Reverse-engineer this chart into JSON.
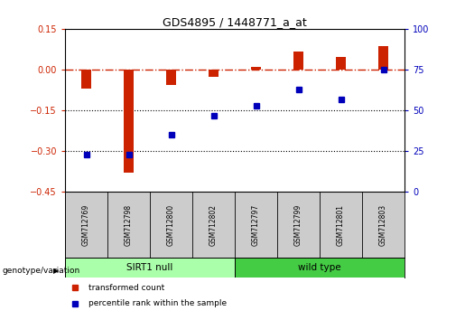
{
  "title": "GDS4895 / 1448771_a_at",
  "samples": [
    "GSM712769",
    "GSM712798",
    "GSM712800",
    "GSM712802",
    "GSM712797",
    "GSM712799",
    "GSM712801",
    "GSM712803"
  ],
  "red_values": [
    -0.07,
    -0.38,
    -0.055,
    -0.025,
    0.01,
    0.065,
    0.045,
    0.085
  ],
  "blue_values_pct": [
    23,
    23,
    35,
    47,
    53,
    63,
    57,
    75
  ],
  "ylim_left": [
    -0.45,
    0.15
  ],
  "ylim_right": [
    0,
    100
  ],
  "yticks_left": [
    0.15,
    0.0,
    -0.15,
    -0.3,
    -0.45
  ],
  "yticks_right": [
    100,
    75,
    50,
    25,
    0
  ],
  "hlines": [
    0.0,
    -0.15,
    -0.3
  ],
  "groups": [
    {
      "label": "SIRT1 null",
      "start": 0,
      "end": 4,
      "color": "#AAFFAA"
    },
    {
      "label": "wild type",
      "start": 4,
      "end": 8,
      "color": "#44CC44"
    }
  ],
  "bar_color_red": "#CC2200",
  "bar_color_blue": "#0000BB",
  "redline_color": "#CC2200",
  "background_color": "#FFFFFF",
  "sample_label_bg": "#CCCCCC",
  "genotype_label": "genotype/variation",
  "legend_red": "transformed count",
  "legend_blue": "percentile rank within the sample",
  "bar_width": 0.25
}
